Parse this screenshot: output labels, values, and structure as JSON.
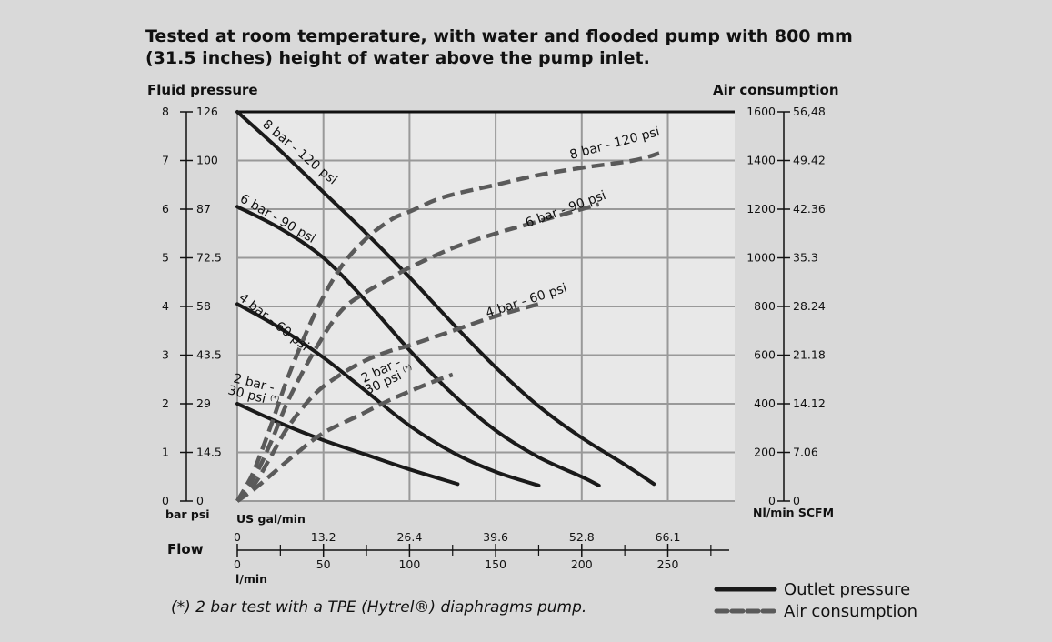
{
  "chart_data": {
    "type": "line",
    "title": "Tested at room temperature, with water and flooded pump with 800 mm (31.5 inches) height of water above the pump inlet.",
    "title_lines": [
      "Tested at room temperature, with water and flooded pump with 800 mm",
      "(31.5 inches) height of water above the pump inlet."
    ],
    "left_axis": {
      "title": "Fluid pressure",
      "units_label": "bar psi",
      "bar_ticks": [
        "0",
        "1",
        "2",
        "3",
        "4",
        "5",
        "6",
        "7",
        "8"
      ],
      "psi_ticks": [
        "0",
        "14.5",
        "29",
        "43.5",
        "58",
        "72.5",
        "87",
        "100",
        "126"
      ],
      "range": [
        0,
        8
      ]
    },
    "right_axis": {
      "title": "Air consumption",
      "units_label": "Nl/min SCFM",
      "nl_ticks": [
        "0",
        "200",
        "400",
        "600",
        "800",
        "1000",
        "1200",
        "1400",
        "1600"
      ],
      "scfm_ticks": [
        "0",
        "7.06",
        "14.12",
        "21.18",
        "28.24",
        "35.3",
        "42.36",
        "49.42",
        "56,48"
      ],
      "range": [
        0,
        1600
      ]
    },
    "x_axis": {
      "flow_label": "Flow",
      "usgal_label": "US gal/min",
      "usgal_ticks": [
        "0",
        "13.2",
        "26.4",
        "39.6",
        "52.8",
        "66.1"
      ],
      "lmin_label": "l/min",
      "lmin_ticks": [
        "0",
        "50",
        "100",
        "150",
        "200",
        "250"
      ],
      "range": [
        0,
        290
      ]
    },
    "grid": true,
    "legend_position": "bottom-right",
    "series": [
      {
        "name": "8 bar - 120 psi",
        "kind": "pressure",
        "label": "8 bar - 120 psi",
        "x": [
          0,
          25,
          50,
          75,
          100,
          125,
          150,
          175,
          200,
          225,
          242
        ],
        "y": [
          8,
          7.2,
          6.35,
          5.5,
          4.6,
          3.65,
          2.75,
          1.95,
          1.3,
          0.75,
          0.35
        ]
      },
      {
        "name": "6 bar - 90 psi",
        "kind": "pressure",
        "label": "6 bar - 90 psi",
        "x": [
          0,
          25,
          50,
          75,
          100,
          125,
          150,
          175,
          200,
          210
        ],
        "y": [
          6.05,
          5.6,
          5.0,
          4.1,
          3.1,
          2.2,
          1.45,
          0.9,
          0.5,
          0.32
        ]
      },
      {
        "name": "4 bar - 60 psi",
        "kind": "pressure",
        "label": "4 bar - 60 psi",
        "x": [
          0,
          25,
          50,
          75,
          100,
          125,
          150,
          175
        ],
        "y": [
          4.05,
          3.55,
          2.95,
          2.25,
          1.55,
          1.0,
          0.6,
          0.32
        ]
      },
      {
        "name": "2 bar - 30 psi (*)",
        "kind": "pressure",
        "label_lines": [
          "2 bar -",
          "30 psi"
        ],
        "label_sup": "(*)",
        "x": [
          0,
          25,
          50,
          75,
          100,
          128
        ],
        "y": [
          2.0,
          1.6,
          1.25,
          0.95,
          0.65,
          0.35
        ]
      },
      {
        "name": "8 bar - 120 psi",
        "kind": "air",
        "label": "8 bar - 120 psi",
        "x": [
          0,
          5,
          10,
          20,
          30,
          45,
          60,
          75,
          90,
          100,
          120,
          150,
          175,
          200,
          230,
          245
        ],
        "y": [
          0,
          60,
          130,
          320,
          520,
          770,
          960,
          1080,
          1160,
          1190,
          1250,
          1300,
          1340,
          1370,
          1400,
          1430
        ]
      },
      {
        "name": "6 bar - 90 psi",
        "kind": "air",
        "label": "6 bar - 90 psi",
        "x": [
          0,
          10,
          20,
          30,
          45,
          60,
          75,
          90,
          100,
          125,
          150,
          175,
          200,
          210
        ],
        "y": [
          0,
          100,
          250,
          420,
          620,
          780,
          860,
          920,
          960,
          1040,
          1100,
          1150,
          1200,
          1220
        ]
      },
      {
        "name": "4 bar - 60 psi",
        "kind": "air",
        "label": "4 bar - 60 psi",
        "x": [
          0,
          10,
          20,
          30,
          45,
          60,
          75,
          90,
          100,
          125,
          150,
          175
        ],
        "y": [
          0,
          70,
          190,
          310,
          440,
          520,
          580,
          620,
          640,
          700,
          760,
          810
        ]
      },
      {
        "name": "2 bar - 30 psi (*)",
        "kind": "air",
        "label_lines": [
          "2 bar -",
          "30 psi"
        ],
        "label_sup": "(*)",
        "x": [
          0,
          10,
          20,
          35,
          50,
          70,
          90,
          110,
          125
        ],
        "y": [
          0,
          50,
          110,
          200,
          280,
          350,
          420,
          480,
          520
        ]
      }
    ],
    "annotation": "(*) 2 bar test with a TPE (Hytrel®) diaphragms pump."
  },
  "legend": {
    "items": [
      {
        "label": "Outlet pressure",
        "style": "solid"
      },
      {
        "label": "Air consumption",
        "style": "dashed"
      }
    ]
  },
  "colors": {
    "background": "#d9d9d9",
    "plot_area": "#e8e8e8",
    "grid": "#999999",
    "pressure_line": "#1a1a1a",
    "air_line": "#5a5a5a"
  }
}
